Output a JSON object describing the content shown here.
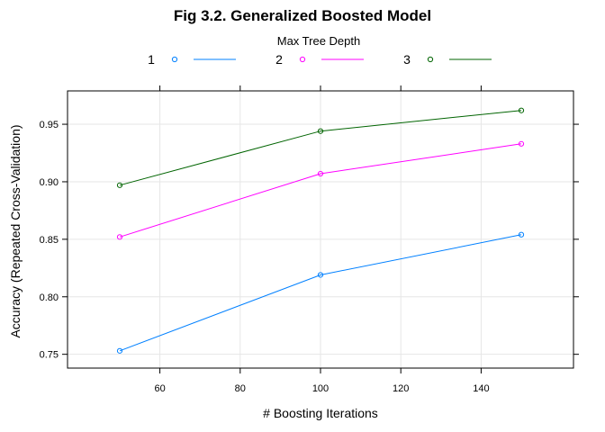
{
  "chart_data": {
    "type": "line",
    "title": "Fig 3.2. Generalized Boosted Model",
    "xlabel": "# Boosting Iterations",
    "ylabel": "Accuracy (Repeated Cross-Validation)",
    "legend": {
      "title": "Max Tree Depth",
      "placement": "top"
    },
    "x": [
      50,
      100,
      150
    ],
    "xlim": [
      37,
      163
    ],
    "ylim": [
      0.738,
      0.979
    ],
    "xticks": [
      60,
      80,
      100,
      120,
      140
    ],
    "yticks": [
      0.75,
      0.8,
      0.85,
      0.9,
      0.95
    ],
    "xtick_labels": [
      "60",
      "80",
      "100",
      "120",
      "140"
    ],
    "ytick_labels": [
      "0.75",
      "0.80",
      "0.85",
      "0.90",
      "0.95"
    ],
    "grid": true,
    "series": [
      {
        "name": "1",
        "color": "#0080ff",
        "values": [
          0.753,
          0.819,
          0.854
        ]
      },
      {
        "name": "2",
        "color": "#ff00ff",
        "values": [
          0.852,
          0.907,
          0.933
        ]
      },
      {
        "name": "3",
        "color": "#006400",
        "values": [
          0.897,
          0.944,
          0.962
        ]
      }
    ]
  }
}
